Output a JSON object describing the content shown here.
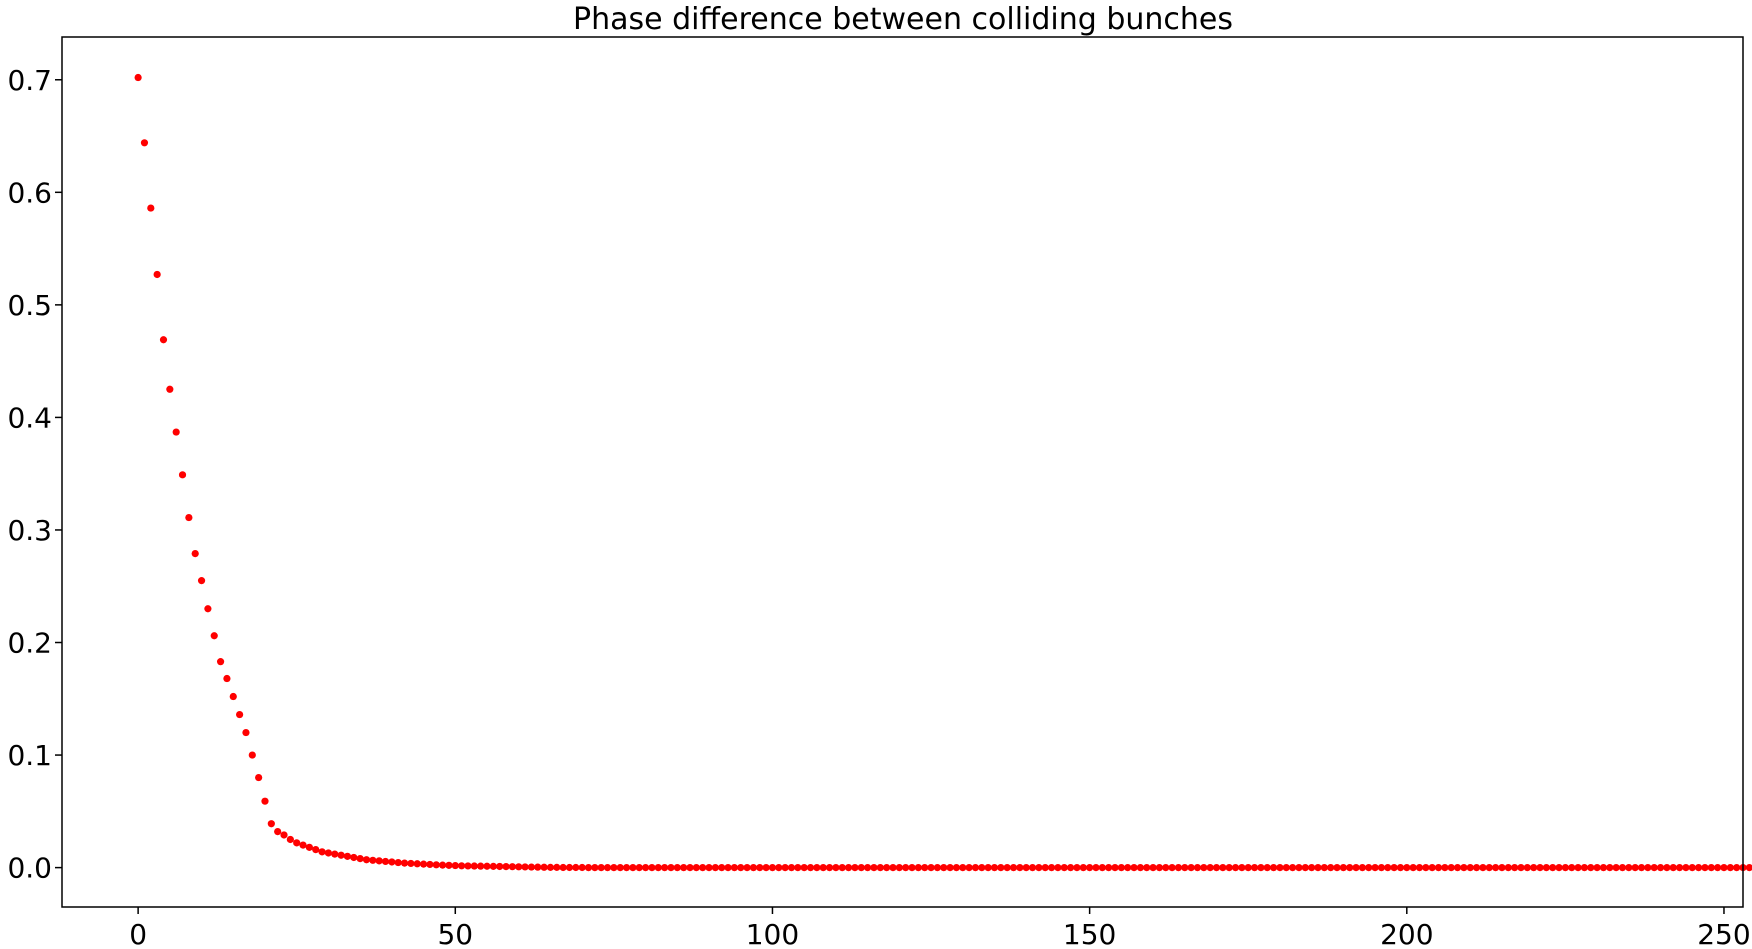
{
  "chart_data": {
    "type": "scatter",
    "title": "Phase difference between colliding bunches",
    "xlabel": "",
    "ylabel": "",
    "xlim": [
      -12,
      253
    ],
    "ylim": [
      -0.035,
      0.738
    ],
    "grid": false,
    "x_ticks": [
      0,
      50,
      100,
      150,
      200,
      250
    ],
    "x_tick_labels": [
      "0",
      "50",
      "100",
      "150",
      "200",
      "250"
    ],
    "y_ticks": [
      0.0,
      0.1,
      0.2,
      0.3,
      0.4,
      0.5,
      0.6,
      0.7
    ],
    "y_tick_labels": [
      "0.0",
      "0.1",
      "0.2",
      "0.3",
      "0.4",
      "0.5",
      "0.6",
      "0.7"
    ],
    "marker_color": "#ff0000",
    "series": [
      {
        "x_start": 0,
        "x_step": 1,
        "values": [
          0.702,
          0.644,
          0.586,
          0.527,
          0.469,
          0.425,
          0.387,
          0.349,
          0.311,
          0.279,
          0.255,
          0.23,
          0.206,
          0.183,
          0.168,
          0.152,
          0.136,
          0.12,
          0.1,
          0.08,
          0.059,
          0.039,
          0.032,
          0.029,
          0.025,
          0.022,
          0.02,
          0.018,
          0.016,
          0.014,
          0.013,
          0.012,
          0.011,
          0.01,
          0.009,
          0.008,
          0.007,
          0.0065,
          0.006,
          0.0055,
          0.005,
          0.0045,
          0.004,
          0.0037,
          0.0034,
          0.0031,
          0.0028,
          0.0025,
          0.0022,
          0.002,
          0.0018,
          0.0016,
          0.0015,
          0.0014,
          0.0013,
          0.0012,
          0.0011,
          0.001,
          0.0009,
          0.0008,
          0.0007,
          0.0006,
          0.0005,
          0.0004,
          0.0003,
          0.0002,
          0.0002,
          0.0001,
          0.0001,
          0.0001,
          0.0001,
          0,
          0,
          0,
          0,
          0,
          0,
          0,
          0,
          0,
          0,
          0,
          0,
          0,
          0,
          0,
          0,
          0,
          0,
          0,
          0,
          0,
          0,
          0,
          0,
          0,
          0,
          0,
          0,
          0,
          0,
          0,
          0,
          0,
          0,
          0,
          0,
          0,
          0,
          0,
          0,
          0,
          0,
          0,
          0,
          0,
          0,
          0,
          0,
          0,
          0,
          0,
          0,
          0,
          0,
          0,
          0,
          0,
          0,
          0,
          0,
          0,
          0,
          0,
          0,
          0,
          0,
          0,
          0,
          0,
          0,
          0,
          0,
          0,
          0,
          0,
          0,
          0,
          0,
          0,
          0,
          0,
          0,
          0,
          0,
          0,
          0,
          0,
          0,
          0,
          0,
          0,
          0,
          0,
          0,
          0,
          0,
          0,
          0,
          0,
          0,
          0,
          0,
          0,
          0,
          0,
          0,
          0,
          0,
          0,
          0,
          0,
          0,
          0,
          0,
          0,
          0,
          0,
          0,
          0,
          0,
          0,
          0,
          0,
          0,
          0,
          0,
          0,
          0,
          0,
          0,
          0,
          0,
          0,
          0,
          0,
          0,
          0,
          0,
          0,
          0,
          0,
          0,
          0,
          0,
          0,
          0,
          0,
          0,
          0,
          0,
          0,
          0,
          0,
          0,
          0,
          0,
          0,
          0,
          0,
          0,
          0,
          0,
          0,
          0,
          0,
          0,
          0,
          0,
          0,
          0,
          0,
          0,
          0,
          0,
          0,
          0,
          0,
          0,
          0,
          0,
          0,
          0,
          0,
          0,
          0
        ]
      }
    ]
  }
}
